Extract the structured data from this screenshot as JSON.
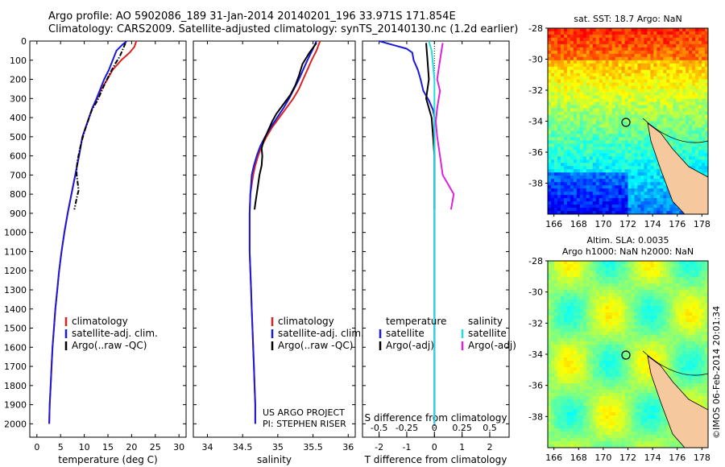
{
  "header": {
    "line1": "Argo profile: AO 5902086_189 31-Jan-2014 20140201_196 33.971S 171.854E",
    "line2": "Climatology: CARS2009. Satellite-adjusted climatology: synTS_20140130.nc (1.2d earlier)"
  },
  "colors": {
    "climatology": "#dd2222",
    "satellite": "#1a1adc",
    "argo": "#000000",
    "sat_cyan": "#22dddd",
    "argo_magenta": "#dd22dd"
  },
  "depth_ticks": [
    "0",
    "100",
    "200",
    "300",
    "400",
    "500",
    "600",
    "700",
    "800",
    "900",
    "1000",
    "1100",
    "1200",
    "1300",
    "1400",
    "1500",
    "1600",
    "1700",
    "1800",
    "1900",
    "2000"
  ],
  "chart_data": [
    {
      "type": "line",
      "id": "temperature",
      "xlabel": "temperature (deg C)",
      "ylabel": "",
      "xlim": [
        -1.5,
        31.5
      ],
      "ylim": [
        2070,
        0
      ],
      "xticks": [
        "0",
        "5",
        "10",
        "15",
        "20",
        "25",
        "30"
      ],
      "xtick_values": [
        0,
        5,
        10,
        15,
        20,
        25,
        30
      ],
      "legend": [
        "climatology",
        "satellite-adj. clim.",
        "Argo(..raw -QC)"
      ],
      "series": [
        {
          "name": "climatology",
          "color": "#dd2222",
          "points": [
            [
              21,
              0
            ],
            [
              20.6,
              30
            ],
            [
              19.6,
              60
            ],
            [
              17.8,
              100
            ],
            [
              16,
              150
            ],
            [
              14.9,
              200
            ],
            [
              13.6,
              250
            ],
            [
              12.7,
              300
            ],
            [
              11.7,
              350
            ],
            [
              11,
              400
            ],
            [
              10.3,
              450
            ],
            [
              9.6,
              500
            ],
            [
              8.9,
              600
            ],
            [
              8.1,
              700
            ],
            [
              7.3,
              800
            ],
            [
              6.5,
              900
            ],
            [
              5.8,
              1000
            ],
            [
              5.2,
              1100
            ],
            [
              4.7,
              1200
            ],
            [
              4.3,
              1300
            ],
            [
              3.9,
              1400
            ],
            [
              3.6,
              1500
            ],
            [
              3.3,
              1600
            ],
            [
              3.1,
              1700
            ],
            [
              2.9,
              1800
            ],
            [
              2.7,
              1900
            ],
            [
              2.6,
              2000
            ]
          ]
        },
        {
          "name": "satellite-adj. clim.",
          "color": "#1a1adc",
          "points": [
            [
              19,
              0
            ],
            [
              18,
              20
            ],
            [
              16.8,
              50
            ],
            [
              16,
              100
            ],
            [
              15.2,
              150
            ],
            [
              14.2,
              200
            ],
            [
              13.4,
              250
            ],
            [
              12.6,
              300
            ],
            [
              11.7,
              350
            ],
            [
              11,
              400
            ],
            [
              10.3,
              450
            ],
            [
              9.6,
              500
            ],
            [
              8.9,
              600
            ],
            [
              8.1,
              700
            ],
            [
              7.3,
              800
            ],
            [
              6.5,
              900
            ],
            [
              5.8,
              1000
            ],
            [
              5.2,
              1100
            ],
            [
              4.7,
              1200
            ],
            [
              4.3,
              1300
            ],
            [
              3.9,
              1400
            ],
            [
              3.6,
              1500
            ],
            [
              3.3,
              1600
            ],
            [
              3.1,
              1700
            ],
            [
              2.9,
              1800
            ],
            [
              2.7,
              1900
            ],
            [
              2.6,
              2000
            ]
          ]
        },
        {
          "name": "Argo(..raw -QC)",
          "color": "#000000",
          "dashed": true,
          "points": [
            [
              18.7,
              10
            ],
            [
              18.2,
              40
            ],
            [
              17.5,
              80
            ],
            [
              16.5,
              120
            ],
            [
              15.4,
              170
            ],
            [
              14.4,
              220
            ],
            [
              13.5,
              270
            ],
            [
              12.8,
              310
            ],
            [
              11.6,
              360
            ],
            [
              10.9,
              410
            ],
            [
              10.2,
              460
            ],
            [
              9.6,
              510
            ],
            [
              9.1,
              560
            ],
            [
              8.6,
              620
            ],
            [
              8.4,
              660
            ],
            [
              8.4,
              700
            ],
            [
              8.6,
              740
            ],
            [
              8.8,
              780
            ],
            [
              8.4,
              820
            ],
            [
              8.1,
              860
            ],
            [
              7.9,
              880
            ]
          ]
        }
      ]
    },
    {
      "type": "line",
      "id": "salinity",
      "xlabel": "salinity",
      "ylabel": "",
      "xlim": [
        33.8,
        36.1
      ],
      "ylim": [
        2070,
        0
      ],
      "xticks": [
        "34",
        "34.5",
        "35",
        "35.5",
        "36"
      ],
      "xtick_values": [
        34,
        34.5,
        35,
        35.5,
        36
      ],
      "legend": [
        "climatology",
        "satellite-adj. clim.",
        "Argo(..raw -QC)"
      ],
      "annotation": [
        "US ARGO PROJECT",
        "PI: STEPHEN RISER"
      ],
      "series": [
        {
          "name": "climatology",
          "color": "#dd2222",
          "points": [
            [
              35.6,
              0
            ],
            [
              35.55,
              50
            ],
            [
              35.48,
              100
            ],
            [
              35.42,
              150
            ],
            [
              35.36,
              200
            ],
            [
              35.3,
              250
            ],
            [
              35.22,
              300
            ],
            [
              35.12,
              350
            ],
            [
              35.02,
              400
            ],
            [
              34.92,
              450
            ],
            [
              34.84,
              500
            ],
            [
              34.77,
              550
            ],
            [
              34.72,
              600
            ],
            [
              34.68,
              650
            ],
            [
              34.65,
              700
            ],
            [
              34.63,
              750
            ],
            [
              34.61,
              800
            ],
            [
              34.6,
              900
            ],
            [
              34.6,
              1000
            ],
            [
              34.6,
              1100
            ],
            [
              34.61,
              1200
            ],
            [
              34.62,
              1300
            ],
            [
              34.63,
              1400
            ],
            [
              34.64,
              1500
            ],
            [
              34.65,
              1600
            ],
            [
              34.66,
              1700
            ],
            [
              34.67,
              1800
            ],
            [
              34.68,
              1900
            ],
            [
              34.68,
              2000
            ]
          ]
        },
        {
          "name": "satellite-adj. clim.",
          "color": "#1a1adc",
          "points": [
            [
              35.55,
              0
            ],
            [
              35.5,
              40
            ],
            [
              35.42,
              100
            ],
            [
              35.36,
              150
            ],
            [
              35.3,
              200
            ],
            [
              35.23,
              250
            ],
            [
              35.16,
              300
            ],
            [
              35.08,
              350
            ],
            [
              34.99,
              400
            ],
            [
              34.9,
              450
            ],
            [
              34.82,
              500
            ],
            [
              34.75,
              550
            ],
            [
              34.7,
              600
            ],
            [
              34.66,
              650
            ],
            [
              34.63,
              700
            ],
            [
              34.62,
              750
            ],
            [
              34.61,
              800
            ],
            [
              34.6,
              900
            ],
            [
              34.6,
              1000
            ],
            [
              34.6,
              1100
            ],
            [
              34.61,
              1200
            ],
            [
              34.62,
              1300
            ],
            [
              34.63,
              1400
            ],
            [
              34.64,
              1500
            ],
            [
              34.65,
              1600
            ],
            [
              34.66,
              1700
            ],
            [
              34.67,
              1800
            ],
            [
              34.68,
              1900
            ],
            [
              34.68,
              2000
            ]
          ]
        },
        {
          "name": "Argo(..raw -QC)",
          "color": "#000000",
          "points": [
            [
              35.55,
              10
            ],
            [
              35.45,
              60
            ],
            [
              35.35,
              120
            ],
            [
              35.3,
              180
            ],
            [
              35.25,
              230
            ],
            [
              35.18,
              280
            ],
            [
              35.08,
              330
            ],
            [
              34.98,
              380
            ],
            [
              34.92,
              420
            ],
            [
              34.86,
              470
            ],
            [
              34.8,
              520
            ],
            [
              34.77,
              560
            ],
            [
              34.78,
              600
            ],
            [
              34.77,
              650
            ],
            [
              34.74,
              700
            ],
            [
              34.72,
              750
            ],
            [
              34.7,
              800
            ],
            [
              34.68,
              850
            ],
            [
              34.67,
              880
            ]
          ]
        }
      ]
    },
    {
      "type": "line",
      "id": "difference",
      "xlabel": "T difference from climatology",
      "xlabel_top": "S difference from climatology",
      "ylabel": "",
      "xlim": [
        -2.6,
        2.7
      ],
      "ylim": [
        2070,
        0
      ],
      "xticks": [
        "-2",
        "-1",
        "0",
        "1",
        "2"
      ],
      "xtick_values": [
        -2,
        -1,
        0,
        1,
        2
      ],
      "sticks": [
        "-0.5",
        "-0.25",
        "0",
        "0.25",
        "0.5"
      ],
      "stick_values": [
        -2,
        -1,
        0,
        1,
        2
      ],
      "legend_temperature": [
        "temperature",
        "satellite",
        "Argo(-adj)"
      ],
      "legend_salinity": [
        "salinity",
        "satellite",
        "Argo(-adj)"
      ],
      "series": [
        {
          "name": "satellite",
          "quantity": "temperature",
          "color": "#1a1adc",
          "points": [
            [
              -2,
              0
            ],
            [
              -1.5,
              20
            ],
            [
              -1,
              40
            ],
            [
              -0.8,
              60
            ],
            [
              -0.75,
              100
            ],
            [
              -0.6,
              150
            ],
            [
              -0.5,
              200
            ],
            [
              -0.4,
              260
            ],
            [
              -0.2,
              310
            ],
            [
              -0.05,
              360
            ],
            [
              0,
              400
            ],
            [
              0,
              2000
            ]
          ]
        },
        {
          "name": "Argo(-adj)",
          "quantity": "temperature",
          "color": "#000000",
          "points": [
            [
              -0.3,
              10
            ],
            [
              -0.25,
              100
            ],
            [
              -0.2,
              200
            ],
            [
              -0.3,
              300
            ],
            [
              -0.1,
              400
            ],
            [
              -0.05,
              500
            ],
            [
              0,
              600
            ],
            [
              0,
              880
            ]
          ]
        },
        {
          "name": "satellite",
          "quantity": "salinity",
          "color": "#22dddd",
          "points": [
            [
              -0.2,
              0
            ],
            [
              -0.1,
              50
            ],
            [
              0,
              200
            ],
            [
              0,
              400
            ],
            [
              0,
              2000
            ]
          ]
        },
        {
          "name": "Argo(-adj)",
          "quantity": "salinity",
          "color": "#dd22dd",
          "points": [
            [
              0.3,
              10
            ],
            [
              0.2,
              100
            ],
            [
              0.1,
              200
            ],
            [
              0.2,
              260
            ],
            [
              0.1,
              350
            ],
            [
              0.05,
              420
            ],
            [
              0.1,
              500
            ],
            [
              0.2,
              600
            ],
            [
              0.3,
              700
            ],
            [
              0.7,
              800
            ],
            [
              0.6,
              880
            ]
          ]
        }
      ]
    }
  ],
  "maps": {
    "sst": {
      "title": "sat. SST: 18.7  Argo: NaN",
      "yticks": [
        "-28",
        "-30",
        "-32",
        "-34",
        "-36",
        "-38"
      ],
      "xticks": [
        "166",
        "168",
        "170",
        "172",
        "174",
        "176",
        "178"
      ]
    },
    "sla": {
      "title1": "Altim. SLA: 0.0035",
      "title2": "Argo h1000: NaN  h2000: NaN",
      "yticks": [
        "-28",
        "-30",
        "-32",
        "-34",
        "-36",
        "-38"
      ],
      "xticks": [
        "166",
        "168",
        "170",
        "172",
        "174",
        "176",
        "178"
      ]
    }
  },
  "stamp": "©IMOS 06-Feb-2014 20:01:34"
}
